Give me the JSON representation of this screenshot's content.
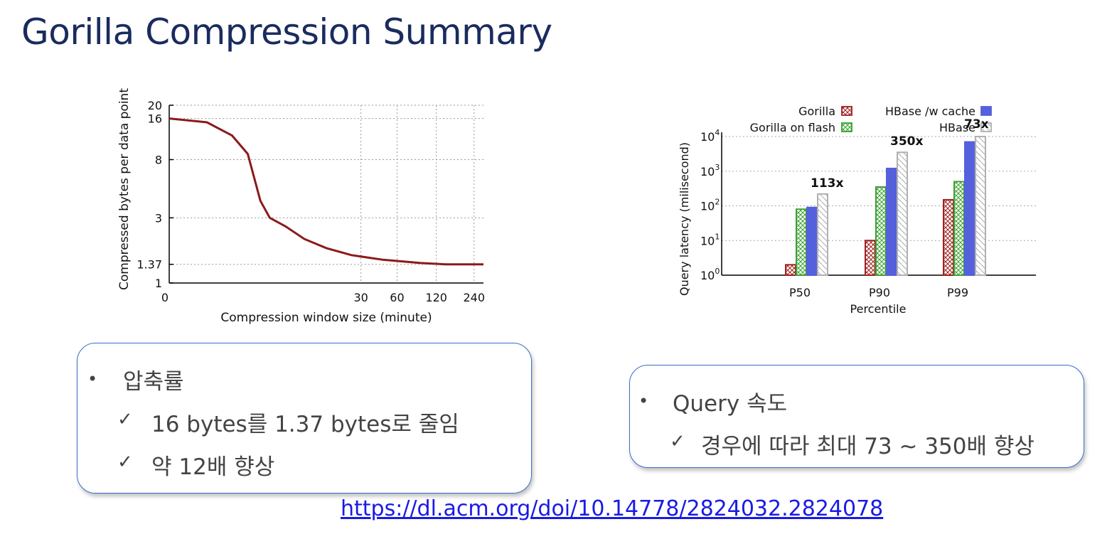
{
  "slide": {
    "title": "Gorilla Compression Summary",
    "link": "https://dl.acm.org/doi/10.14778/2824032.2824078"
  },
  "left_box": {
    "bullet_char": "•",
    "heading": "압축률",
    "check_char": "✓",
    "items": [
      "16 bytes를 1.37 bytes로 줄임",
      "약 12배 향상"
    ]
  },
  "right_box": {
    "bullet_char": "•",
    "heading": "Query 속도",
    "check_char": "✓",
    "items": [
      "경우에 따라 최대 73 ~ 350배 향상"
    ]
  },
  "chart_data": [
    {
      "type": "line",
      "xlabel": "Compression window size (minute)",
      "ylabel": "Compressed bytes per data point",
      "y_ticks": [
        "1",
        "1.37",
        "3",
        "8",
        "16",
        "20"
      ],
      "y_tick_values": [
        1,
        1.37,
        3,
        8,
        16,
        20
      ],
      "x_ticks": [
        "0",
        "30",
        "60",
        "120",
        "240"
      ],
      "y_scale": "log",
      "grid": true,
      "line_color": "#8b1a1a",
      "series": [
        {
          "x_frac": [
            0,
            0.12,
            0.2,
            0.25,
            0.29,
            0.32,
            0.37,
            0.43,
            0.5,
            0.58,
            0.68,
            0.8,
            0.88,
            1.0
          ],
          "values": [
            16,
            15,
            12,
            8.8,
            4,
            3,
            2.6,
            2.1,
            1.8,
            1.6,
            1.48,
            1.4,
            1.37,
            1.37
          ]
        }
      ]
    },
    {
      "type": "bar",
      "ylabel": "Query latency (milisecond)",
      "xlabel": "Percentile",
      "y_scale": "log",
      "ylim": [
        1,
        10000
      ],
      "y_ticks": [
        {
          "base": "10",
          "exp": "0"
        },
        {
          "base": "10",
          "exp": "1"
        },
        {
          "base": "10",
          "exp": "2"
        },
        {
          "base": "10",
          "exp": "3"
        },
        {
          "base": "10",
          "exp": "4"
        }
      ],
      "grid": true,
      "categories": [
        "P50",
        "P90",
        "P99"
      ],
      "series": [
        {
          "name": "Gorilla",
          "color": "#a02020",
          "pattern": "cross",
          "values": [
            2,
            10,
            150
          ]
        },
        {
          "name": "Gorilla on flash",
          "color": "#3aa030",
          "pattern": "cross",
          "values": [
            80,
            350,
            500
          ]
        },
        {
          "name": "HBase /w cache",
          "color": "#5560dd",
          "pattern": "solid",
          "values": [
            90,
            1200,
            7000
          ]
        },
        {
          "name": "HBase",
          "color": "#b0b0b0",
          "pattern": "diag",
          "values": [
            220,
            3500,
            10000
          ]
        }
      ],
      "annotations": [
        "113x",
        "350x",
        "73x"
      ],
      "legend_position": "top"
    }
  ]
}
